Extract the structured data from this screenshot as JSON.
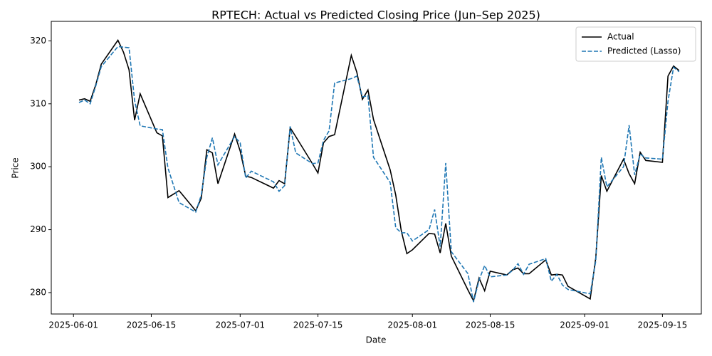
{
  "chart_data": {
    "type": "line",
    "title": "RPTECH: Actual vs Predicted Closing Price (Jun–Sep 2025)",
    "x_label": "Date",
    "y_label": "Price",
    "x": [
      "2025-06-02",
      "2025-06-03",
      "2025-06-04",
      "2025-06-05",
      "2025-06-06",
      "2025-06-09",
      "2025-06-10",
      "2025-06-11",
      "2025-06-12",
      "2025-06-13",
      "2025-06-16",
      "2025-06-17",
      "2025-06-18",
      "2025-06-20",
      "2025-06-23",
      "2025-06-24",
      "2025-06-25",
      "2025-06-26",
      "2025-06-27",
      "2025-06-30",
      "2025-07-01",
      "2025-07-02",
      "2025-07-03",
      "2025-07-07",
      "2025-07-08",
      "2025-07-09",
      "2025-07-10",
      "2025-07-11",
      "2025-07-14",
      "2025-07-15",
      "2025-07-16",
      "2025-07-17",
      "2025-07-18",
      "2025-07-21",
      "2025-07-22",
      "2025-07-23",
      "2025-07-24",
      "2025-07-25",
      "2025-07-28",
      "2025-07-29",
      "2025-07-30",
      "2025-07-31",
      "2025-08-01",
      "2025-08-04",
      "2025-08-05",
      "2025-08-06",
      "2025-08-07",
      "2025-08-08",
      "2025-08-11",
      "2025-08-12",
      "2025-08-13",
      "2025-08-14",
      "2025-08-15",
      "2025-08-18",
      "2025-08-19",
      "2025-08-20",
      "2025-08-21",
      "2025-08-22",
      "2025-08-25",
      "2025-08-26",
      "2025-08-27",
      "2025-08-28",
      "2025-08-29",
      "2025-09-02",
      "2025-09-03",
      "2025-09-04",
      "2025-09-05",
      "2025-09-08",
      "2025-09-09",
      "2025-09-10",
      "2025-09-11",
      "2025-09-12",
      "2025-09-15",
      "2025-09-16",
      "2025-09-17",
      "2025-09-18"
    ],
    "series": [
      {
        "name": "Actual",
        "color": "#000000",
        "dash": false,
        "values": [
          310.6,
          310.8,
          310.4,
          313,
          316.3,
          320.1,
          318.2,
          315.4,
          307.4,
          311.6,
          305.4,
          304.9,
          295.1,
          296.2,
          293,
          295,
          302.7,
          302.2,
          297.3,
          305.2,
          302.5,
          298.5,
          298.3,
          296.6,
          297.8,
          297.3,
          306.2,
          304.8,
          300.5,
          299,
          303.8,
          304.8,
          305.1,
          317.7,
          315,
          310.7,
          312.2,
          307.5,
          299.5,
          295.5,
          289.8,
          286.2,
          286.8,
          289.4,
          289.3,
          286.3,
          291,
          285.8,
          280.4,
          278.7,
          282.3,
          280.3,
          283.4,
          282.8,
          283.6,
          283.9,
          283,
          283,
          285.2,
          282.8,
          282.9,
          282.8,
          281,
          279,
          285.5,
          298.6,
          296.1,
          301.2,
          298.9,
          297.3,
          302.3,
          301,
          300.7,
          314.4,
          316,
          315.3
        ]
      },
      {
        "name": "Predicted (Lasso)",
        "color": "#1f77b4",
        "dash": true,
        "values": [
          310.2,
          310.6,
          310,
          312.8,
          315.9,
          319.1,
          319,
          318.9,
          310.5,
          306.5,
          306,
          305.9,
          299.8,
          294.3,
          292.8,
          295.5,
          301.5,
          304.6,
          300.3,
          304.8,
          303.8,
          298.2,
          299.3,
          297.6,
          296.1,
          297,
          306.4,
          302.2,
          300.5,
          300.6,
          304.2,
          305.7,
          313.3,
          314,
          314.4,
          311.1,
          311.3,
          301.5,
          297.5,
          290.3,
          289.5,
          289.5,
          288.2,
          290,
          293.2,
          287.3,
          300.6,
          286.5,
          283,
          278.5,
          282,
          284.3,
          282.5,
          282.8,
          283.5,
          284.6,
          282.9,
          284.5,
          285.4,
          281.8,
          282.9,
          281.2,
          280.5,
          279.8,
          285,
          301.5,
          296.8,
          300,
          306.6,
          298.7,
          302,
          301.4,
          301.2,
          310.4,
          315.8,
          315.1
        ]
      }
    ],
    "xlim": [
      "2025-05-28",
      "2025-09-22"
    ],
    "xticks": [
      "2025-06-01",
      "2025-06-15",
      "2025-07-01",
      "2025-07-15",
      "2025-08-01",
      "2025-08-15",
      "2025-09-01",
      "2025-09-15"
    ],
    "ylim": [
      276.6,
      323.1
    ],
    "yticks": [
      280,
      290,
      300,
      310,
      320
    ],
    "legend": "upper right",
    "grid": false
  }
}
